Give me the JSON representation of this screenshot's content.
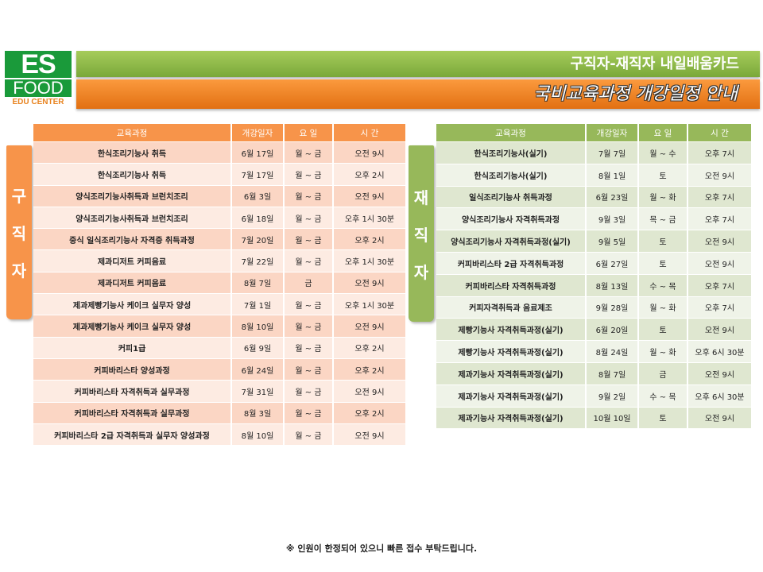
{
  "logo": {
    "line1": "ES",
    "line2": "FOOD",
    "line3": "EDU CENTER"
  },
  "header": {
    "title": "구직자-재직자 내일배움카드",
    "subtitle": "국비교육과정 개강일정 안내"
  },
  "colors": {
    "orange": "#f7944a",
    "green": "#97b85a"
  },
  "left": {
    "label": [
      "구",
      "직",
      "자"
    ],
    "columns": [
      "교육과정",
      "개강일자",
      "요 일",
      "시 간"
    ],
    "rows": [
      [
        "한식조리기능사 취득",
        "6월 17일",
        "월 ~ 금",
        "오전 9시"
      ],
      [
        "한식조리기능사 취득",
        "7월 17일",
        "월 ~ 금",
        "오후 2시"
      ],
      [
        "양식조리기능사취득과 브런치조리",
        "6월 3일",
        "월 ~ 금",
        "오전 9시"
      ],
      [
        "양식조리기능사취득과 브런치조리",
        "6월 18일",
        "월 ~ 금",
        "오후 1시 30분"
      ],
      [
        "중식 일식조리기능사 자격증 취득과정",
        "7월 20일",
        "월 ~ 금",
        "오후 2시"
      ],
      [
        "제과디저트 커피음료",
        "7월 22일",
        "월 ~ 금",
        "오후 1시 30분"
      ],
      [
        "제과디저트 커피음료",
        "8월 7일",
        "금",
        "오전 9시"
      ],
      [
        "제과제빵기능사 케이크 실무자 양성",
        "7월 1일",
        "월 ~ 금",
        "오후 1시 30분"
      ],
      [
        "제과제빵기능사 케이크 실무자 양성",
        "8월 10일",
        "월 ~ 금",
        "오전 9시"
      ],
      [
        "커피1급",
        "6월 9일",
        "월 ~ 금",
        "오후 2시"
      ],
      [
        "커피바리스타 양성과정",
        "6월 24일",
        "월 ~ 금",
        "오후 2시"
      ],
      [
        "커피바리스타 자격취득과 실무과정",
        "7월 31일",
        "월 ~ 금",
        "오전 9시"
      ],
      [
        "커피바리스타 자격취득과 실무과정",
        "8월 3일",
        "월 ~ 금",
        "오후 2시"
      ],
      [
        "커피바리스타 2급 자격취득과 실무자 양성과정",
        "8월 10일",
        "월 ~ 금",
        "오전 9시"
      ]
    ]
  },
  "right": {
    "label": [
      "재",
      "직",
      "자"
    ],
    "columns": [
      "교육과정",
      "개강일자",
      "요 일",
      "시 간"
    ],
    "rows": [
      [
        "한식조리기능사(실기)",
        "7월 7일",
        "월 ~ 수",
        "오후 7시"
      ],
      [
        "한식조리기능사(실기)",
        "8월 1일",
        "토",
        "오전 9시"
      ],
      [
        "일식조리기능사 취득과정",
        "6월 23일",
        "월 ~ 화",
        "오후 7시"
      ],
      [
        "양식조리기능사 자격취득과정",
        "9월 3일",
        "목 ~ 금",
        "오후 7시"
      ],
      [
        "양식조리기능사 자격취득과정(실기)",
        "9월 5일",
        "토",
        "오전 9시"
      ],
      [
        "커피바리스타 2급 자격취득과정",
        "6월 27일",
        "토",
        "오전 9시"
      ],
      [
        "커피바리스타 자격취득과정",
        "8월 13일",
        "수 ~ 목",
        "오후 7시"
      ],
      [
        "커피자격취득과 음료제조",
        "9월 28일",
        "월 ~ 화",
        "오후 7시"
      ],
      [
        "제빵기능사 자격취득과정(실기)",
        "6월 20일",
        "토",
        "오전 9시"
      ],
      [
        "제빵기능사 자격취득과정(실기)",
        "8월 24일",
        "월 ~ 화",
        "오후 6시 30분"
      ],
      [
        "제과기능사 자격취득과정(실기)",
        "8월 7일",
        "금",
        "오전 9시"
      ],
      [
        "제과기능사 자격취득과정(실기)",
        "9월 2일",
        "수 ~ 목",
        "오후 6시 30분"
      ],
      [
        "제과기능사 자격취득과정(실기)",
        "10월 10일",
        "토",
        "오전 9시"
      ]
    ]
  },
  "footer": {
    "note": "※ 인원이 한정되어 있으니 빠른 접수 부탁드립니다."
  }
}
